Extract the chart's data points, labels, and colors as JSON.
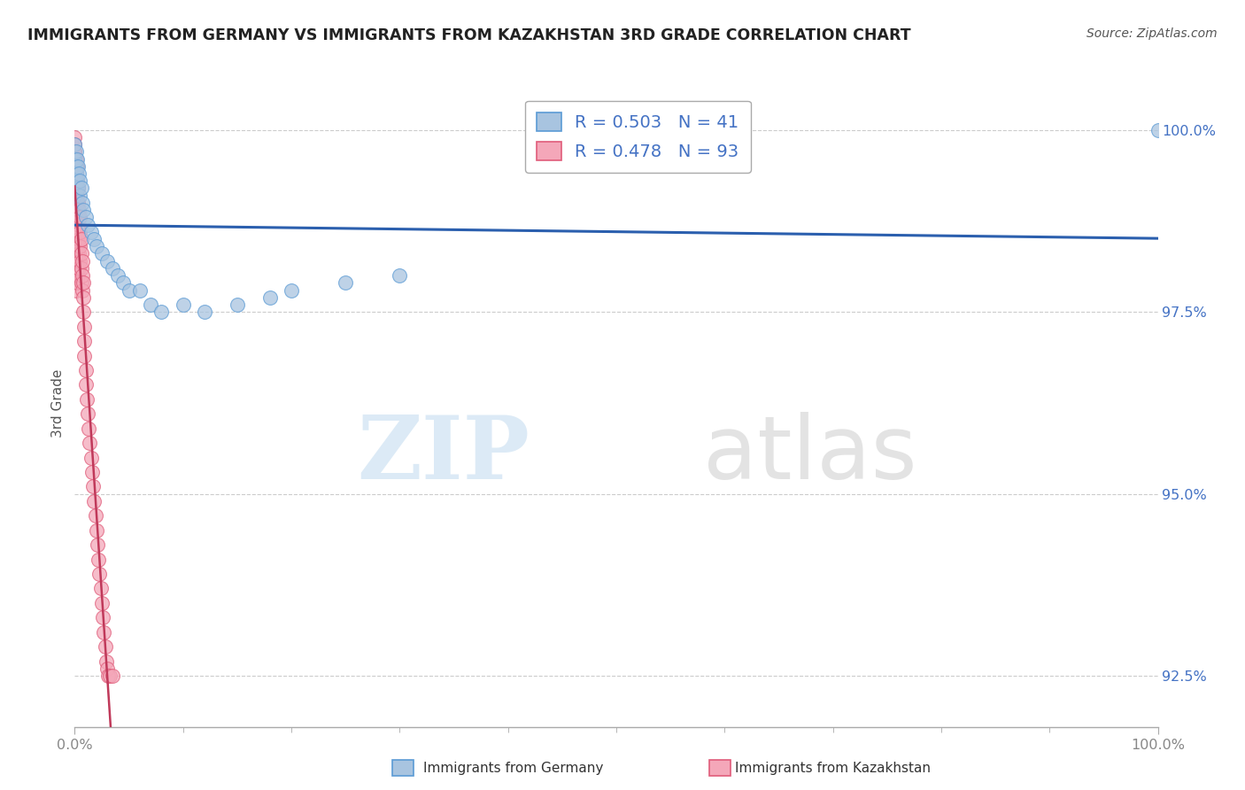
{
  "title": "IMMIGRANTS FROM GERMANY VS IMMIGRANTS FROM KAZAKHSTAN 3RD GRADE CORRELATION CHART",
  "source": "Source: ZipAtlas.com",
  "ylabel": "3rd Grade",
  "legend_label_blue": "Immigrants from Germany",
  "legend_label_pink": "Immigrants from Kazakhstan",
  "R_blue": 0.503,
  "N_blue": 41,
  "R_pink": 0.478,
  "N_pink": 93,
  "color_blue": "#a8c4e0",
  "color_blue_edge": "#5b9bd5",
  "color_pink": "#f4a7b9",
  "color_pink_edge": "#e05c7a",
  "color_trendline_blue": "#2b5fae",
  "color_trendline_pink": "#c0395a",
  "scatter_blue_x": [
    0.0,
    0.0,
    0.0,
    0.0,
    0.0,
    0.001,
    0.001,
    0.001,
    0.001,
    0.002,
    0.002,
    0.003,
    0.003,
    0.004,
    0.005,
    0.005,
    0.006,
    0.007,
    0.008,
    0.01,
    0.012,
    0.015,
    0.018,
    0.02,
    0.025,
    0.03,
    0.035,
    0.04,
    0.045,
    0.05,
    0.06,
    0.07,
    0.08,
    0.1,
    0.12,
    0.15,
    0.18,
    0.2,
    0.25,
    0.3,
    1.0
  ],
  "scatter_blue_y": [
    99.8,
    99.6,
    99.5,
    99.3,
    99.1,
    99.7,
    99.5,
    99.4,
    99.2,
    99.6,
    99.3,
    99.5,
    99.2,
    99.4,
    99.3,
    99.1,
    99.2,
    99.0,
    98.9,
    98.8,
    98.7,
    98.6,
    98.5,
    98.4,
    98.3,
    98.2,
    98.1,
    98.0,
    97.9,
    97.8,
    97.8,
    97.6,
    97.5,
    97.6,
    97.5,
    97.6,
    97.7,
    97.8,
    97.9,
    98.0,
    100.0
  ],
  "scatter_pink_x": [
    0.0,
    0.0,
    0.0,
    0.0,
    0.0,
    0.0,
    0.0,
    0.0,
    0.0,
    0.0,
    0.0,
    0.0,
    0.0,
    0.0,
    0.0,
    0.0,
    0.0,
    0.0,
    0.0,
    0.0,
    0.001,
    0.001,
    0.001,
    0.001,
    0.001,
    0.001,
    0.001,
    0.001,
    0.001,
    0.001,
    0.002,
    0.002,
    0.002,
    0.002,
    0.002,
    0.002,
    0.002,
    0.002,
    0.002,
    0.003,
    0.003,
    0.003,
    0.003,
    0.003,
    0.003,
    0.003,
    0.004,
    0.004,
    0.004,
    0.004,
    0.004,
    0.005,
    0.005,
    0.005,
    0.005,
    0.006,
    0.006,
    0.006,
    0.006,
    0.007,
    0.007,
    0.007,
    0.008,
    0.008,
    0.008,
    0.009,
    0.009,
    0.009,
    0.01,
    0.01,
    0.011,
    0.012,
    0.013,
    0.014,
    0.015,
    0.016,
    0.017,
    0.018,
    0.019,
    0.02,
    0.021,
    0.022,
    0.023,
    0.024,
    0.025,
    0.026,
    0.027,
    0.028,
    0.029,
    0.03,
    0.031,
    0.032,
    0.035
  ],
  "scatter_pink_y": [
    99.9,
    99.8,
    99.7,
    99.7,
    99.6,
    99.5,
    99.5,
    99.4,
    99.4,
    99.3,
    99.3,
    99.2,
    99.2,
    99.1,
    99.1,
    99.0,
    99.0,
    98.9,
    98.9,
    98.8,
    99.6,
    99.4,
    99.2,
    99.0,
    98.8,
    98.6,
    98.4,
    98.2,
    98.0,
    97.8,
    99.5,
    99.3,
    99.1,
    98.9,
    98.7,
    98.5,
    98.3,
    98.1,
    97.9,
    99.2,
    99.0,
    98.8,
    98.6,
    98.4,
    98.2,
    98.0,
    98.9,
    98.7,
    98.5,
    98.3,
    98.1,
    98.8,
    98.6,
    98.4,
    98.2,
    98.5,
    98.3,
    98.1,
    97.9,
    98.2,
    98.0,
    97.8,
    97.9,
    97.7,
    97.5,
    97.3,
    97.1,
    96.9,
    96.7,
    96.5,
    96.3,
    96.1,
    95.9,
    95.7,
    95.5,
    95.3,
    95.1,
    94.9,
    94.7,
    94.5,
    94.3,
    94.1,
    93.9,
    93.7,
    93.5,
    93.3,
    93.1,
    92.9,
    92.7,
    92.6,
    92.5,
    92.5,
    92.5
  ],
  "xmin": 0.0,
  "xmax": 1.0,
  "ymin": 91.8,
  "ymax": 100.7,
  "ytick_values": [
    92.5,
    95.0,
    97.5,
    100.0
  ],
  "watermark_zip": "ZIP",
  "watermark_atlas": "atlas",
  "background_color": "#ffffff",
  "grid_color": "#cccccc",
  "tick_color_y": "#4472c4",
  "tick_color_x": "#888888"
}
